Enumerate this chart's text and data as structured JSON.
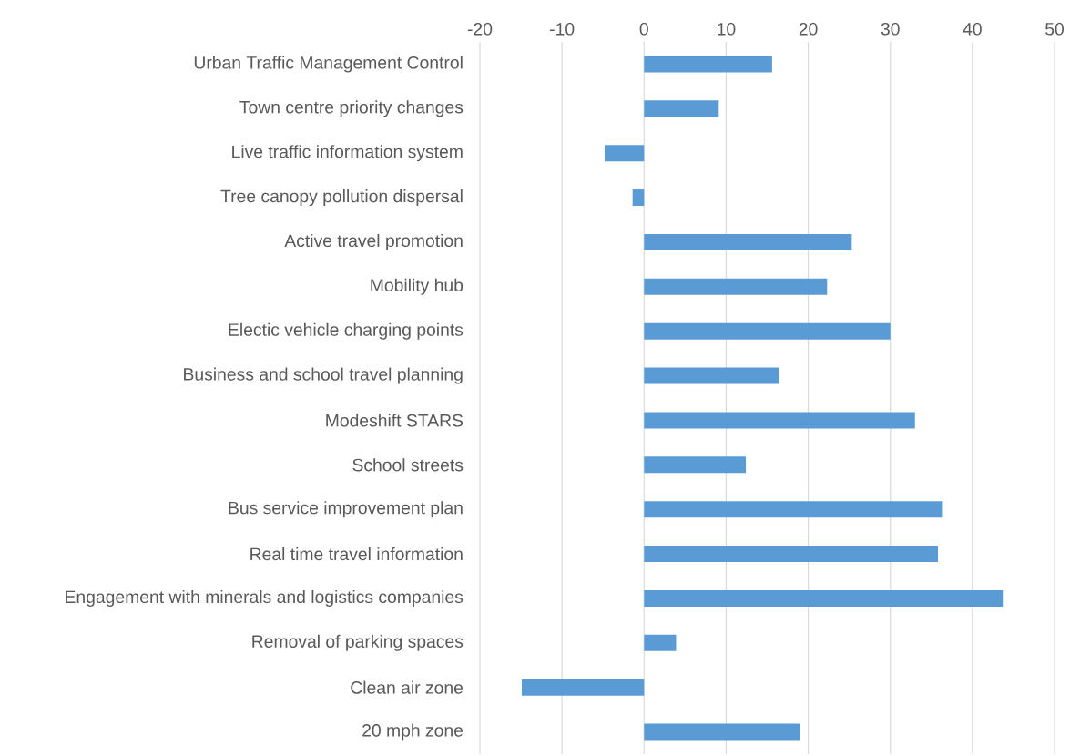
{
  "chart_data": {
    "type": "bar",
    "orientation": "horizontal",
    "categories": [
      "Urban Traffic Management Control",
      "Town centre priority changes",
      "Live traffic information system",
      "Tree canopy pollution dispersal",
      "Active travel promotion",
      "Mobility hub",
      "Electic vehicle charging points",
      "Business and school travel planning",
      "Modeshift STARS",
      "School streets",
      "Bus service improvement plan",
      "Real time travel information",
      "Engagement with minerals and logistics companies",
      "Removal of parking spaces",
      "Clean air zone",
      "20 mph zone"
    ],
    "values": [
      15.6,
      9.1,
      -4.8,
      -1.4,
      25.3,
      22.3,
      30.0,
      16.5,
      33.0,
      12.4,
      36.4,
      35.8,
      43.7,
      3.9,
      -14.9,
      19.0
    ],
    "color": "#5b9bd5",
    "xlim": [
      -20,
      50
    ],
    "xticks": [
      -20,
      -10,
      0,
      10,
      20,
      30,
      40,
      50
    ],
    "grid": "x"
  }
}
